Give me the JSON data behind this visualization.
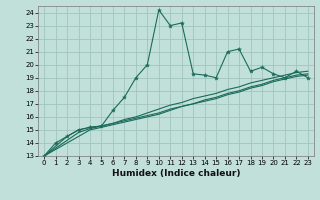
{
  "xlabel": "Humidex (Indice chaleur)",
  "ylabel": "",
  "xlim": [
    -0.5,
    23.5
  ],
  "ylim": [
    13,
    24.5
  ],
  "yticks": [
    13,
    14,
    15,
    16,
    17,
    18,
    19,
    20,
    21,
    22,
    23,
    24
  ],
  "xticks": [
    0,
    1,
    2,
    3,
    4,
    5,
    6,
    7,
    8,
    9,
    10,
    11,
    12,
    13,
    14,
    15,
    16,
    17,
    18,
    19,
    20,
    21,
    22,
    23
  ],
  "bg_color": "#c2e0da",
  "grid_color": "#a0c4be",
  "line_color": "#1a6b5a",
  "line1_x": [
    0,
    1,
    2,
    3,
    4,
    5,
    6,
    7,
    8,
    9,
    10,
    11,
    12,
    13,
    14,
    15,
    16,
    17,
    18,
    19,
    20,
    21,
    22,
    23
  ],
  "line1_y": [
    13.0,
    14.0,
    14.5,
    15.0,
    15.2,
    15.3,
    16.5,
    17.5,
    19.0,
    20.0,
    24.2,
    23.0,
    23.2,
    19.3,
    19.2,
    19.0,
    21.0,
    21.2,
    19.5,
    19.8,
    19.3,
    19.0,
    19.5,
    19.0
  ],
  "line2_x": [
    0,
    2,
    3,
    4,
    5,
    6,
    7,
    8,
    9,
    10,
    11,
    12,
    13,
    14,
    15,
    16,
    17,
    18,
    19,
    20,
    21,
    22,
    23
  ],
  "line2_y": [
    13.0,
    14.5,
    15.0,
    15.2,
    15.3,
    15.5,
    15.8,
    16.0,
    16.3,
    16.6,
    16.9,
    17.1,
    17.4,
    17.6,
    17.8,
    18.1,
    18.3,
    18.6,
    18.8,
    19.0,
    19.2,
    19.4,
    19.5
  ],
  "line3_x": [
    0,
    2,
    3,
    4,
    5,
    6,
    7,
    8,
    9,
    10,
    11,
    12,
    13,
    14,
    15,
    16,
    17,
    18,
    19,
    20,
    21,
    22,
    23
  ],
  "line3_y": [
    13.0,
    14.0,
    14.5,
    15.0,
    15.2,
    15.4,
    15.6,
    15.8,
    16.0,
    16.2,
    16.5,
    16.8,
    17.0,
    17.3,
    17.5,
    17.8,
    18.0,
    18.3,
    18.5,
    18.8,
    19.0,
    19.2,
    19.3
  ],
  "line4_x": [
    0,
    3,
    4,
    5,
    6,
    7,
    8,
    9,
    10,
    11,
    12,
    13,
    14,
    15,
    16,
    17,
    18,
    19,
    20,
    21,
    22,
    23
  ],
  "line4_y": [
    13.0,
    14.8,
    15.1,
    15.3,
    15.5,
    15.7,
    15.9,
    16.1,
    16.3,
    16.6,
    16.8,
    17.0,
    17.2,
    17.4,
    17.7,
    17.9,
    18.2,
    18.4,
    18.7,
    18.9,
    19.1,
    19.2
  ]
}
